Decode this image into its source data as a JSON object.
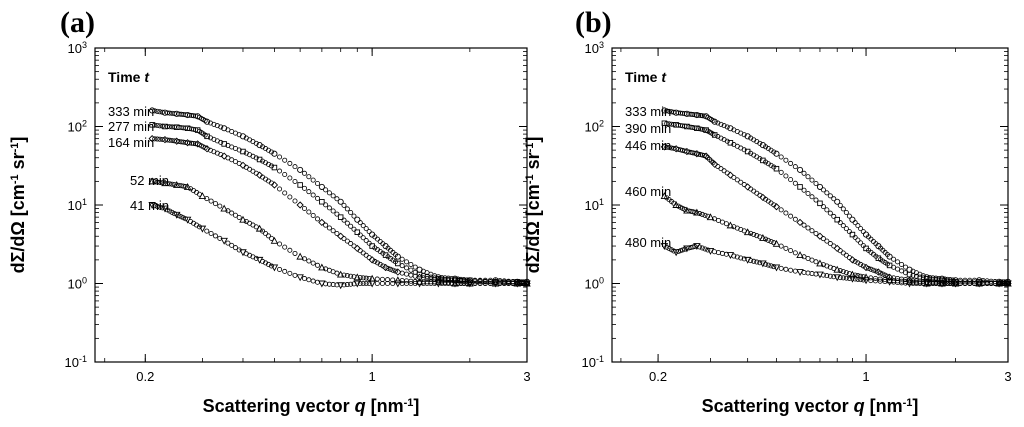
{
  "chart_data": [
    {
      "type": "scatter",
      "panel_label": "(a)",
      "xlabel_text": "Scattering vector ",
      "xlabel_var": "q",
      "xlabel_unit": " [nm",
      "xlabel_exp": "-1",
      "xlabel_close": "]",
      "ylabel_main": "dΣ/dΩ [cm",
      "ylabel_exp1": "-1",
      "ylabel_mid": " sr",
      "ylabel_exp2": "-1",
      "ylabel_close": "]",
      "x_scale": "log",
      "y_scale": "log",
      "xlim": [
        0.14,
        3
      ],
      "ylim": [
        0.1,
        1000
      ],
      "x_ticks": [
        {
          "v": 0.2,
          "label": "0.2"
        },
        {
          "v": 1,
          "label": "1"
        },
        {
          "v": 3,
          "label": "3"
        }
      ],
      "y_ticks": [
        {
          "v": 0.1,
          "base": "10",
          "exp": "-1"
        },
        {
          "v": 1,
          "base": "10",
          "exp": "0"
        },
        {
          "v": 10,
          "base": "10",
          "exp": "1"
        },
        {
          "v": 100,
          "base": "10",
          "exp": "2"
        },
        {
          "v": 1000,
          "base": "10",
          "exp": "3"
        }
      ],
      "legend_title": "Time ",
      "legend_title_var": "t",
      "series": [
        {
          "name": "333 min",
          "x": [
            0.21,
            0.23,
            0.25,
            0.27,
            0.29,
            0.31,
            0.35,
            0.4,
            0.45,
            0.5,
            0.6,
            0.7,
            0.8,
            0.9,
            1.0,
            1.1,
            1.2,
            1.4,
            1.6,
            1.8,
            2.0,
            2.4,
            2.8,
            3.0
          ],
          "y": [
            160,
            150,
            145,
            140,
            135,
            115,
            95,
            75,
            58,
            45,
            28,
            17,
            11,
            6.5,
            4.2,
            3.0,
            2.2,
            1.5,
            1.2,
            1.15,
            1.1,
            1.1,
            1.05,
            1.05
          ]
        },
        {
          "name": "277 min",
          "x": [
            0.21,
            0.23,
            0.25,
            0.27,
            0.29,
            0.31,
            0.35,
            0.4,
            0.45,
            0.5,
            0.6,
            0.7,
            0.8,
            0.9,
            1.0,
            1.1,
            1.2,
            1.4,
            1.6,
            1.8,
            2.0,
            2.4,
            2.8,
            3.0
          ],
          "y": [
            105,
            100,
            98,
            95,
            90,
            75,
            60,
            48,
            38,
            30,
            18,
            11,
            7,
            4.5,
            3.0,
            2.3,
            1.8,
            1.3,
            1.15,
            1.1,
            1.1,
            1.05,
            1.05,
            1.0
          ]
        },
        {
          "name": "164 min",
          "x": [
            0.21,
            0.23,
            0.25,
            0.27,
            0.29,
            0.31,
            0.35,
            0.4,
            0.45,
            0.5,
            0.6,
            0.7,
            0.8,
            0.9,
            1.0,
            1.1,
            1.2,
            1.4,
            1.6,
            1.8,
            2.0,
            2.4,
            2.8,
            3.0
          ],
          "y": [
            70,
            68,
            65,
            62,
            60,
            52,
            42,
            32,
            24,
            18,
            10,
            6.0,
            4.0,
            2.8,
            2.0,
            1.6,
            1.4,
            1.2,
            1.1,
            1.1,
            1.05,
            1.05,
            1.0,
            1.0
          ]
        },
        {
          "name": "52 min",
          "x": [
            0.21,
            0.23,
            0.25,
            0.27,
            0.3,
            0.35,
            0.4,
            0.45,
            0.5,
            0.6,
            0.7,
            0.8,
            0.9,
            1.0,
            1.2,
            1.4,
            1.6,
            1.8,
            2.0,
            2.4,
            2.8,
            3.0
          ],
          "y": [
            20,
            19,
            18,
            17,
            13,
            9,
            6.5,
            5.0,
            3.5,
            2.2,
            1.6,
            1.3,
            1.2,
            1.15,
            1.1,
            1.05,
            1.05,
            1.0,
            1.0,
            1.0,
            1.0,
            1.0
          ]
        },
        {
          "name": "41 min",
          "x": [
            0.21,
            0.23,
            0.25,
            0.27,
            0.3,
            0.35,
            0.4,
            0.45,
            0.5,
            0.6,
            0.7,
            0.8,
            0.9,
            1.0,
            1.2,
            1.4,
            1.6,
            1.8,
            2.0,
            2.4,
            2.8,
            3.0
          ],
          "y": [
            10,
            9,
            7.5,
            6.5,
            5,
            3.5,
            2.5,
            2.0,
            1.6,
            1.2,
            1.0,
            0.95,
            1.0,
            1.0,
            1.0,
            1.0,
            1.0,
            1.0,
            1.0,
            1.0,
            1.0,
            1.0
          ]
        }
      ]
    },
    {
      "type": "scatter",
      "panel_label": "(b)",
      "xlabel_text": "Scattering vector ",
      "xlabel_var": "q",
      "xlabel_unit": " [nm",
      "xlabel_exp": "-1",
      "xlabel_close": "]",
      "ylabel_main": "dΣ/dΩ [cm",
      "ylabel_exp1": "-1",
      "ylabel_mid": " sr",
      "ylabel_exp2": "-1",
      "ylabel_close": "]",
      "x_scale": "log",
      "y_scale": "log",
      "xlim": [
        0.14,
        3
      ],
      "ylim": [
        0.1,
        1000
      ],
      "x_ticks": [
        {
          "v": 0.2,
          "label": "0.2"
        },
        {
          "v": 1,
          "label": "1"
        },
        {
          "v": 3,
          "label": "3"
        }
      ],
      "y_ticks": [
        {
          "v": 0.1,
          "base": "10",
          "exp": "-1"
        },
        {
          "v": 1,
          "base": "10",
          "exp": "0"
        },
        {
          "v": 10,
          "base": "10",
          "exp": "1"
        },
        {
          "v": 100,
          "base": "10",
          "exp": "2"
        },
        {
          "v": 1000,
          "base": "10",
          "exp": "3"
        }
      ],
      "legend_title": "Time ",
      "legend_title_var": "t",
      "series": [
        {
          "name": "333 min",
          "x": [
            0.21,
            0.23,
            0.25,
            0.27,
            0.29,
            0.31,
            0.35,
            0.4,
            0.45,
            0.5,
            0.6,
            0.7,
            0.8,
            0.9,
            1.0,
            1.1,
            1.2,
            1.4,
            1.6,
            1.8,
            2.0,
            2.4,
            2.8,
            3.0
          ],
          "y": [
            160,
            150,
            145,
            140,
            135,
            115,
            95,
            75,
            58,
            45,
            28,
            17,
            11,
            6.5,
            4.2,
            3.0,
            2.2,
            1.5,
            1.2,
            1.15,
            1.1,
            1.1,
            1.05,
            1.05
          ]
        },
        {
          "name": "390 min",
          "x": [
            0.21,
            0.23,
            0.25,
            0.27,
            0.29,
            0.31,
            0.35,
            0.4,
            0.45,
            0.5,
            0.6,
            0.7,
            0.8,
            0.9,
            1.0,
            1.1,
            1.2,
            1.4,
            1.6,
            1.8,
            2.0,
            2.4,
            2.8,
            3.0
          ],
          "y": [
            110,
            105,
            100,
            95,
            90,
            78,
            62,
            48,
            37,
            29,
            17,
            10.5,
            6.5,
            4.2,
            2.8,
            2.1,
            1.7,
            1.3,
            1.15,
            1.1,
            1.05,
            1.05,
            1.0,
            1.0
          ]
        },
        {
          "name": "446 min",
          "x": [
            0.21,
            0.23,
            0.25,
            0.27,
            0.29,
            0.31,
            0.35,
            0.4,
            0.45,
            0.5,
            0.6,
            0.7,
            0.8,
            0.9,
            1.0,
            1.1,
            1.2,
            1.4,
            1.6,
            1.8,
            2.0,
            2.4,
            2.8,
            3.0
          ],
          "y": [
            55,
            52,
            48,
            45,
            42,
            33,
            24,
            17,
            12.5,
            9.5,
            6.0,
            4.0,
            2.8,
            2.0,
            1.6,
            1.4,
            1.2,
            1.1,
            1.05,
            1.0,
            1.0,
            1.0,
            1.0,
            1.0
          ]
        },
        {
          "name": "460 min",
          "x": [
            0.21,
            0.23,
            0.25,
            0.27,
            0.3,
            0.35,
            0.4,
            0.45,
            0.5,
            0.6,
            0.7,
            0.8,
            0.9,
            1.0,
            1.2,
            1.4,
            1.6,
            1.8,
            2.0,
            2.4,
            2.8,
            3.0
          ],
          "y": [
            13,
            10,
            8.5,
            8,
            7,
            5.5,
            4.5,
            3.8,
            3.2,
            2.3,
            1.8,
            1.5,
            1.3,
            1.2,
            1.1,
            1.05,
            1.0,
            1.0,
            1.0,
            1.0,
            1.0,
            1.0
          ]
        },
        {
          "name": "480 min",
          "x": [
            0.21,
            0.23,
            0.25,
            0.27,
            0.3,
            0.35,
            0.4,
            0.45,
            0.5,
            0.6,
            0.7,
            0.8,
            0.9,
            1.0,
            1.2,
            1.4,
            1.6,
            1.8,
            2.0,
            2.4,
            2.8,
            3.0
          ],
          "y": [
            3.0,
            2.5,
            2.8,
            3.0,
            2.6,
            2.3,
            2.0,
            1.8,
            1.6,
            1.4,
            1.3,
            1.2,
            1.15,
            1.1,
            1.05,
            1.0,
            1.0,
            1.0,
            1.0,
            1.0,
            1.0,
            1.0
          ]
        }
      ]
    }
  ]
}
